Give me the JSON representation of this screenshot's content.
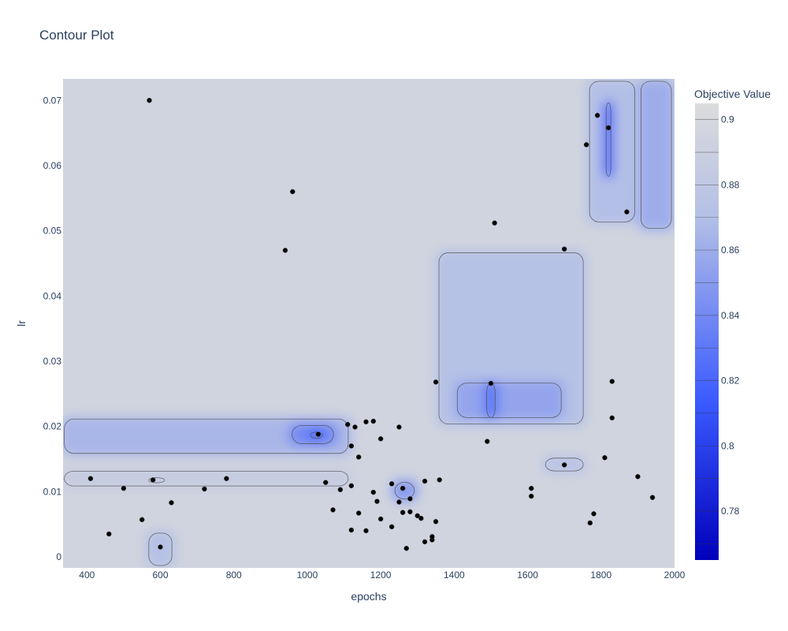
{
  "chart_data": {
    "type": "contour",
    "title": "Contour Plot",
    "xlabel": "epochs",
    "ylabel": "lr",
    "xlim": [
      335,
      2000
    ],
    "ylim": [
      -0.0017,
      0.0733
    ],
    "x_ticks": [
      400,
      600,
      800,
      1000,
      1200,
      1400,
      1600,
      1800,
      2000
    ],
    "y_ticks": [
      0,
      0.01,
      0.02,
      0.03,
      0.04,
      0.05,
      0.06,
      0.07
    ],
    "x_tick_labels": [
      "400",
      "600",
      "800",
      "1000",
      "1200",
      "1400",
      "1600",
      "1800",
      "2000"
    ],
    "y_tick_labels": [
      "0",
      "0.01",
      "0.02",
      "0.03",
      "0.04",
      "0.05",
      "0.06",
      "0.07"
    ],
    "colorbar": {
      "title": "Objective Value",
      "range": [
        0.765,
        0.905
      ],
      "ticks": [
        0.9,
        0.88,
        0.86,
        0.84,
        0.82,
        0.8,
        0.78
      ],
      "tick_labels": [
        "0.9",
        "0.88",
        "0.86",
        "0.84",
        "0.82",
        "0.8",
        "0.78"
      ],
      "colors": [
        "#0000bb",
        "#3b5bff",
        "#b3bfe6",
        "#dcdcdc"
      ]
    },
    "background_value": 0.895,
    "regions": [
      {
        "x": [
          330,
          1120
        ],
        "y": [
          0.0155,
          0.0215
        ],
        "value": 0.865
      },
      {
        "x": [
          950,
          1080
        ],
        "y": [
          0.017,
          0.0205
        ],
        "value": 0.84
      },
      {
        "x": [
          1000,
          1050
        ],
        "y": [
          0.0178,
          0.0195
        ],
        "value": 0.82
      },
      {
        "x": [
          1230,
          1300
        ],
        "y": [
          0.0085,
          0.0118
        ],
        "value": 0.85
      },
      {
        "x": [
          1350,
          1760
        ],
        "y": [
          0.02,
          0.047
        ],
        "value": 0.872
      },
      {
        "x": [
          1400,
          1700
        ],
        "y": [
          0.021,
          0.027
        ],
        "value": 0.855
      },
      {
        "x": [
          1480,
          1520
        ],
        "y": [
          0.021,
          0.027
        ],
        "value": 0.83
      },
      {
        "x": [
          1760,
          1900
        ],
        "y": [
          0.051,
          0.0733
        ],
        "value": 0.87
      },
      {
        "x": [
          1805,
          1835
        ],
        "y": [
          0.058,
          0.07
        ],
        "value": 0.82
      },
      {
        "x": [
          1900,
          2000
        ],
        "y": [
          0.05,
          0.0733
        ],
        "value": 0.86
      },
      {
        "x": [
          1640,
          1760
        ],
        "y": [
          0.0128,
          0.0155
        ],
        "value": 0.875
      },
      {
        "x": [
          560,
          620
        ],
        "y": [
          0.011,
          0.0125
        ],
        "value": 0.87
      },
      {
        "x": [
          560,
          640
        ],
        "y": [
          -0.0017,
          0.004
        ],
        "value": 0.872
      },
      {
        "x": [
          330,
          1120
        ],
        "y": [
          0.0105,
          0.0135
        ],
        "value": 0.886
      }
    ],
    "points": {
      "x": [
        570,
        960,
        940,
        410,
        500,
        580,
        630,
        780,
        720,
        460,
        550,
        600,
        1030,
        1110,
        1130,
        1160,
        1180,
        1120,
        1140,
        1200,
        1050,
        1090,
        1120,
        1070,
        1140,
        1180,
        1190,
        1230,
        1250,
        1260,
        1250,
        1280,
        1260,
        1310,
        1320,
        1340,
        1350,
        1120,
        1160,
        1200,
        1230,
        1270,
        1300,
        1340,
        1320,
        1360,
        1280,
        1350,
        1500,
        1490,
        1510,
        1700,
        1700,
        1610,
        1610,
        1760,
        1790,
        1820,
        1870,
        1830,
        1830,
        1810,
        1900,
        1940,
        1780,
        1770
      ],
      "y": [
        0.07,
        0.056,
        0.047,
        0.012,
        0.0105,
        0.0118,
        0.0083,
        0.012,
        0.0104,
        0.0035,
        0.0057,
        0.0015,
        0.0188,
        0.0203,
        0.0199,
        0.0207,
        0.0208,
        0.017,
        0.0153,
        0.0181,
        0.0114,
        0.0103,
        0.0109,
        0.0072,
        0.0067,
        0.0099,
        0.0085,
        0.0112,
        0.0199,
        0.0105,
        0.0084,
        0.0089,
        0.0068,
        0.0059,
        0.0023,
        0.0026,
        0.0054,
        0.0041,
        0.004,
        0.0058,
        0.0046,
        0.0013,
        0.0063,
        0.0031,
        0.0116,
        0.0118,
        0.0069,
        0.0268,
        0.0266,
        0.0177,
        0.0512,
        0.0472,
        0.0141,
        0.0105,
        0.0093,
        0.0632,
        0.0677,
        0.0658,
        0.0529,
        0.0269,
        0.0213,
        0.0152,
        0.0123,
        0.0091,
        0.0066,
        0.0052
      ]
    }
  }
}
